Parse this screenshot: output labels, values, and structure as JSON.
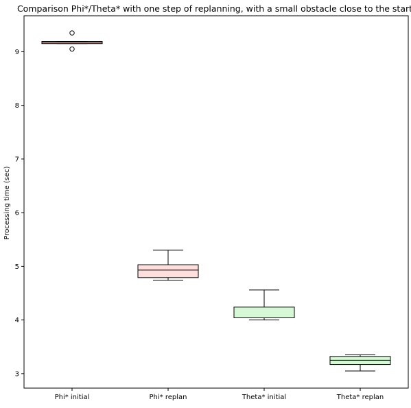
{
  "chart_data": {
    "type": "box",
    "title": "Comparison Phi*/Theta* with one step of replanning, with a small obstacle close to the start",
    "xlabel": "",
    "ylabel": "Processing time (sec)",
    "ylim": [
      2.73,
      9.67
    ],
    "yticks": [
      3,
      4,
      5,
      6,
      7,
      8,
      9
    ],
    "grid": false,
    "categories": [
      "Phi* initial",
      "Phi* replan",
      "Theta* initial",
      "Theta* replan"
    ],
    "boxes": [
      {
        "category": "Phi* initial",
        "whisker_low": 9.15,
        "q1": 9.15,
        "median": 9.18,
        "q3": 9.19,
        "whisker_high": 9.19,
        "outliers": [
          9.35,
          9.05
        ],
        "fill": "#ffdede"
      },
      {
        "category": "Phi* replan",
        "whisker_low": 4.74,
        "q1": 4.79,
        "median": 4.93,
        "q3": 5.03,
        "whisker_high": 5.3,
        "outliers": [],
        "fill": "#ffdede"
      },
      {
        "category": "Theta* initial",
        "whisker_low": 4.0,
        "q1": 4.04,
        "median": 4.04,
        "q3": 4.24,
        "whisker_high": 4.56,
        "outliers": [],
        "fill": "#d6f8d6"
      },
      {
        "category": "Theta* replan",
        "whisker_low": 3.05,
        "q1": 3.17,
        "median": 3.25,
        "q3": 3.32,
        "whisker_high": 3.35,
        "outliers": [],
        "fill": "#d6f8d6"
      }
    ]
  }
}
